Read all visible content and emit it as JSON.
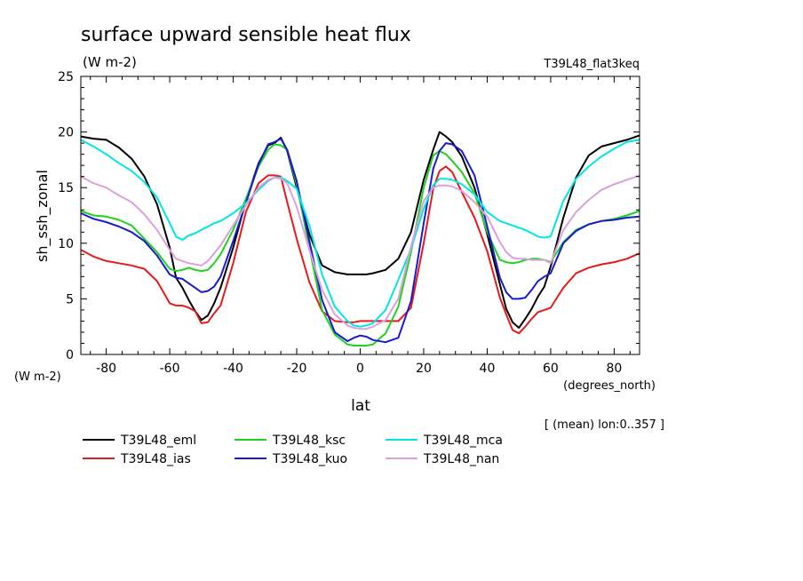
{
  "chart_data": {
    "type": "line",
    "title": "surface upward sensible heat flux",
    "units": "(W m-2)",
    "experiment": "T39L48_flat3keq",
    "ylabel": "sh_ssh_zonal",
    "ylabel_units": "(W m-2)",
    "xlabel": "lat",
    "xlabel_units": "(degrees_north)",
    "note": "[ (mean) lon:0..357 ]",
    "xlim": [
      -88,
      88
    ],
    "ylim": [
      0,
      25
    ],
    "xticks": [
      -80,
      -60,
      -40,
      -20,
      0,
      20,
      40,
      60,
      80
    ],
    "yticks": [
      0,
      5,
      10,
      15,
      20,
      25
    ],
    "legend_position": "bottom",
    "x": [
      -88,
      -84,
      -80,
      -76,
      -72,
      -68,
      -64,
      -60,
      -58,
      -56,
      -54,
      -52,
      -50,
      -48,
      -46,
      -44,
      -40,
      -36,
      -32,
      -29,
      -27,
      -25,
      -23,
      -20,
      -16,
      -12,
      -8,
      -4,
      -2,
      0,
      2,
      4,
      8,
      12,
      16,
      20,
      23,
      25,
      27,
      29,
      32,
      36,
      40,
      44,
      46,
      48,
      50,
      52,
      54,
      56,
      58,
      60,
      64,
      68,
      72,
      76,
      80,
      84,
      88
    ],
    "series": [
      {
        "name": "T39L48_eml",
        "color": "#000000",
        "values": [
          19.6,
          19.4,
          19.3,
          18.6,
          17.6,
          16.0,
          13.5,
          9.6,
          6.9,
          6.0,
          4.9,
          3.9,
          3.1,
          3.5,
          4.6,
          6.0,
          9.6,
          13.8,
          17.2,
          18.8,
          19.0,
          19.5,
          18.3,
          15.0,
          10.8,
          8.0,
          7.4,
          7.2,
          7.2,
          7.2,
          7.2,
          7.3,
          7.6,
          8.6,
          11.0,
          15.7,
          18.4,
          20.0,
          19.6,
          19.1,
          17.8,
          15.0,
          10.8,
          6.3,
          4.1,
          2.9,
          2.4,
          3.2,
          4.1,
          5.2,
          6.1,
          7.9,
          12.3,
          15.9,
          17.9,
          18.7,
          19.0,
          19.3,
          19.7
        ]
      },
      {
        "name": "T39L48_ias",
        "color": "#e41a1c",
        "values": [
          9.4,
          8.8,
          8.4,
          8.2,
          8.0,
          7.7,
          6.6,
          4.6,
          4.4,
          4.4,
          4.2,
          3.9,
          2.8,
          2.9,
          3.7,
          4.4,
          8.2,
          12.8,
          15.4,
          16.1,
          16.1,
          16.0,
          13.7,
          10.4,
          6.5,
          3.9,
          3.0,
          2.9,
          2.9,
          3.0,
          3.0,
          3.0,
          3.0,
          3.0,
          4.2,
          10.0,
          14.9,
          16.5,
          16.9,
          16.4,
          14.6,
          12.3,
          9.3,
          5.1,
          3.6,
          2.2,
          1.9,
          2.5,
          3.2,
          3.8,
          4.0,
          4.2,
          6.0,
          7.3,
          7.8,
          8.1,
          8.3,
          8.6,
          9.1
        ]
      },
      {
        "name": "T39L48_ksc",
        "color": "#1fd21f",
        "values": [
          12.9,
          12.5,
          12.4,
          12.1,
          11.6,
          10.4,
          9.2,
          7.7,
          7.5,
          7.6,
          7.8,
          7.6,
          7.5,
          7.6,
          8.2,
          9.0,
          11.2,
          14.0,
          16.9,
          18.4,
          18.9,
          18.8,
          18.4,
          15.3,
          9.6,
          4.0,
          1.8,
          0.9,
          0.8,
          0.8,
          0.8,
          0.9,
          1.9,
          4.3,
          9.2,
          15.0,
          17.9,
          18.3,
          18.0,
          17.4,
          16.4,
          14.5,
          11.0,
          8.5,
          8.3,
          8.2,
          8.3,
          8.5,
          8.6,
          8.6,
          8.5,
          8.3,
          10.1,
          11.2,
          11.7,
          12.0,
          12.2,
          12.5,
          12.9
        ]
      },
      {
        "name": "T39L48_kuo",
        "color": "#1a1acd",
        "values": [
          12.7,
          12.2,
          11.9,
          11.5,
          11.0,
          10.2,
          8.9,
          7.2,
          6.9,
          6.8,
          6.4,
          6.0,
          5.6,
          5.7,
          6.1,
          7.0,
          10.2,
          13.6,
          17.1,
          18.9,
          19.1,
          19.4,
          18.4,
          15.6,
          10.2,
          4.9,
          2.0,
          1.2,
          1.5,
          1.7,
          1.6,
          1.3,
          1.1,
          1.5,
          4.8,
          11.8,
          16.7,
          18.3,
          19.0,
          18.9,
          18.3,
          16.1,
          11.5,
          6.9,
          5.6,
          5.0,
          5.0,
          5.1,
          5.8,
          6.6,
          7.0,
          7.3,
          10.0,
          11.1,
          11.7,
          12.0,
          12.1,
          12.3,
          12.4
        ]
      },
      {
        "name": "T39L48_mca",
        "color": "#00e6e6",
        "values": [
          19.3,
          18.7,
          18.0,
          17.2,
          16.5,
          15.5,
          14.1,
          11.8,
          10.6,
          10.3,
          10.7,
          10.9,
          11.2,
          11.5,
          11.8,
          12.0,
          12.7,
          13.6,
          14.8,
          15.6,
          15.9,
          15.9,
          15.6,
          14.9,
          11.6,
          7.2,
          4.3,
          3.0,
          2.6,
          2.5,
          2.6,
          2.8,
          4.0,
          6.7,
          9.5,
          13.1,
          15.2,
          15.8,
          15.8,
          15.7,
          15.3,
          14.4,
          12.8,
          12.0,
          11.8,
          11.6,
          11.4,
          11.2,
          10.9,
          10.6,
          10.5,
          10.6,
          13.8,
          15.8,
          16.9,
          17.8,
          18.5,
          19.1,
          19.3
        ]
      },
      {
        "name": "T39L48_nan",
        "color": "#dda0dd",
        "values": [
          16.0,
          15.4,
          15.0,
          14.3,
          13.7,
          12.6,
          11.2,
          9.4,
          8.6,
          8.4,
          8.2,
          8.1,
          8.0,
          8.4,
          9.1,
          9.8,
          11.6,
          13.4,
          15.0,
          15.7,
          15.9,
          15.8,
          15.4,
          13.3,
          9.4,
          5.8,
          3.6,
          2.6,
          2.4,
          2.3,
          2.3,
          2.5,
          3.1,
          5.0,
          9.7,
          13.8,
          15.0,
          15.2,
          15.2,
          15.1,
          14.7,
          13.7,
          12.4,
          10.1,
          9.2,
          8.7,
          8.6,
          8.6,
          8.5,
          8.5,
          8.5,
          8.2,
          11.2,
          12.8,
          13.9,
          14.8,
          15.3,
          15.7,
          16.1
        ]
      }
    ]
  }
}
